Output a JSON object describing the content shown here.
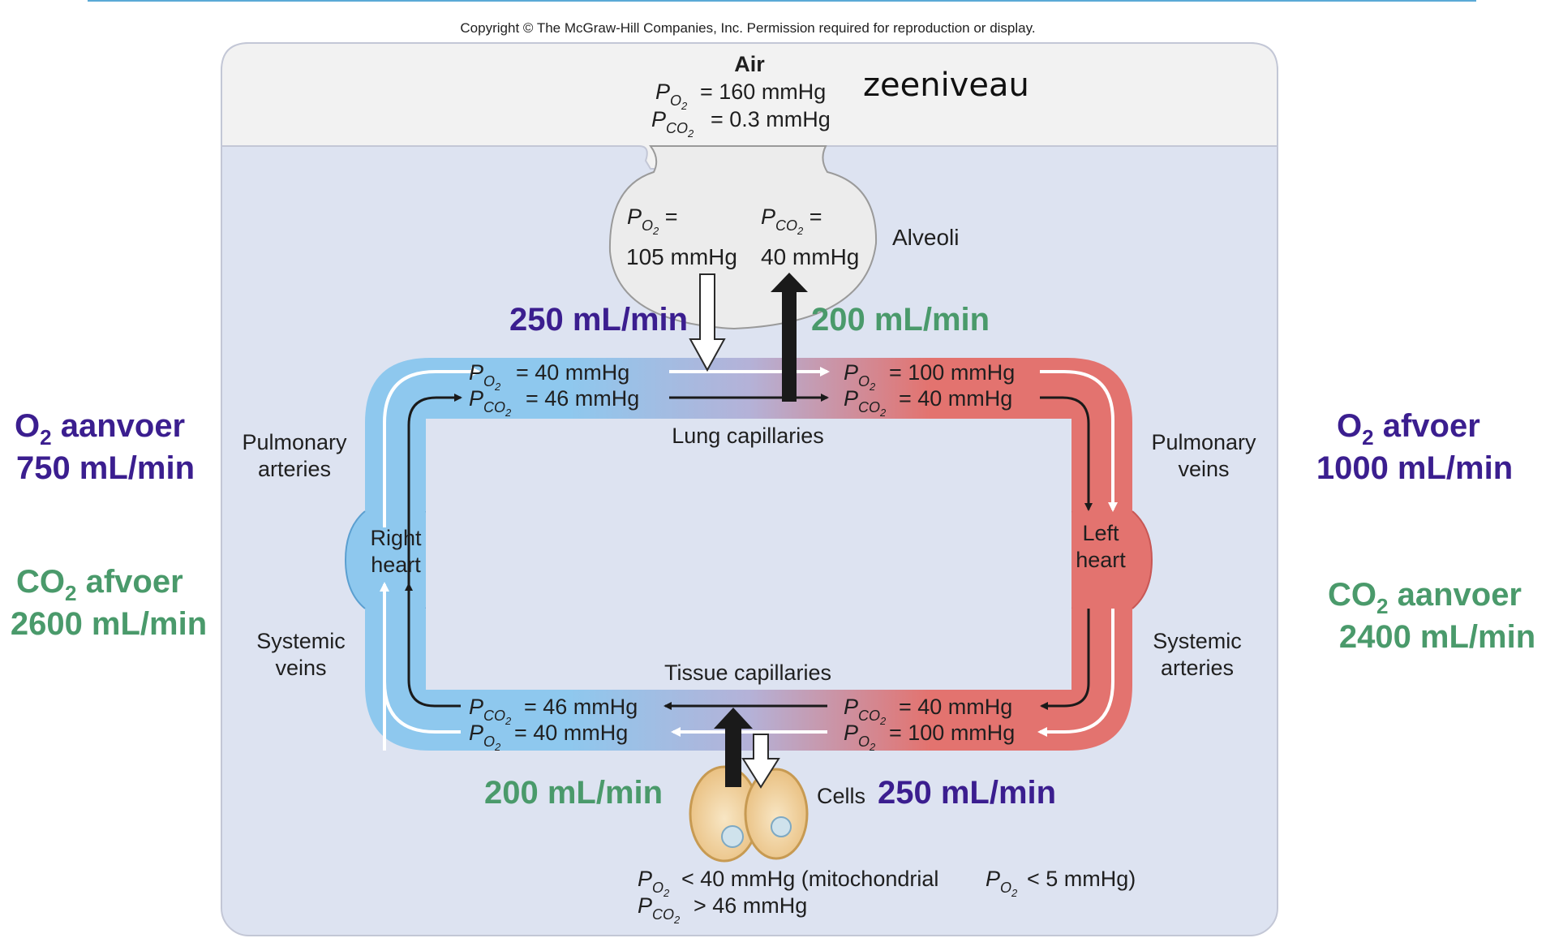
{
  "copyright": "Copyright © The McGraw-Hill Companies, Inc. Permission required for reproduction or display.",
  "air": {
    "title": "Air",
    "po2": "= 160 mmHg",
    "pco2": "= 0.3 mmHg",
    "note": "zeeniveau"
  },
  "alveoli": {
    "label": "Alveoli",
    "po2_value": "105 mmHg",
    "pco2_value": "40 mmHg"
  },
  "lung": {
    "label": "Lung capillaries",
    "in_po2": "= 40 mmHg",
    "in_pco2": "= 46 mmHg",
    "out_po2": "= 100 mmHg",
    "out_pco2": "= 40 mmHg",
    "o2_uptake": "250 mL/min",
    "co2_release": "200 mL/min"
  },
  "tissue": {
    "label": "Tissue capillaries",
    "out_pco2": "= 46 mmHg",
    "out_po2": "= 40 mmHg",
    "in_pco2": "= 40 mmHg",
    "in_po2": "= 100 mmHg",
    "co2_production": "200 mL/min",
    "o2_consumption": "250 mL/min",
    "cells_label": "Cells",
    "cells_po2": "< 40 mmHg (mitochondrial",
    "cells_po2_mito": "< 5 mmHg)",
    "cells_pco2": "> 46 mmHg"
  },
  "vessels": {
    "pulmonary_arteries_1": "Pulmonary",
    "pulmonary_arteries_2": "arteries",
    "pulmonary_veins_1": "Pulmonary",
    "pulmonary_veins_2": "veins",
    "systemic_veins_1": "Systemic",
    "systemic_veins_2": "veins",
    "systemic_arteries_1": "Systemic",
    "systemic_arteries_2": "arteries",
    "right_heart_1": "Right",
    "right_heart_2": "heart",
    "left_heart_1": "Left",
    "left_heart_2": "heart"
  },
  "side_notes": {
    "o2_aanvoer_label": "aanvoer",
    "o2_aanvoer_value": "750 mL/min",
    "co2_afvoer_label": "afvoer",
    "co2_afvoer_value": "2600 mL/min",
    "o2_afvoer_label": "afvoer",
    "o2_afvoer_value": "1000 mL/min",
    "co2_aanvoer_label": "aanvoer",
    "co2_aanvoer_value": "2400 mL/min"
  },
  "colors": {
    "purple": "#3b1e8f",
    "green": "#4a9a6b",
    "venous_blue": "#8ec8ee",
    "arterial_red": "#e3736f",
    "panel": "#dde3f1",
    "air_panel": "#f2f2f2"
  }
}
